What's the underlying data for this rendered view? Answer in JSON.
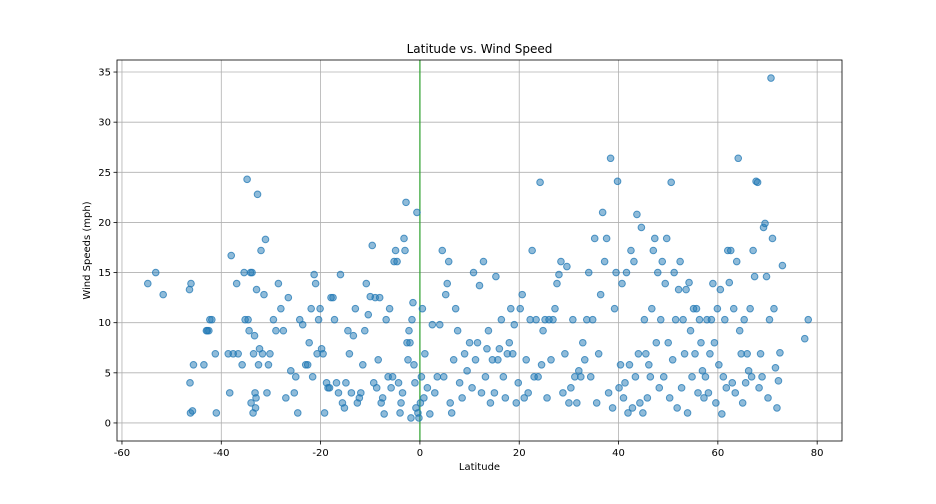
{
  "chart_data": {
    "type": "scatter",
    "title": "Latitude vs. Wind Speed",
    "xlabel": "Latitude",
    "ylabel": "Wind Speeds (mph)",
    "xlim": [
      -61,
      85
    ],
    "ylim": [
      -1.8,
      36.2
    ],
    "xticks": [
      -60,
      -40,
      -20,
      0,
      20,
      40,
      60,
      80
    ],
    "yticks": [
      0,
      5,
      10,
      15,
      20,
      25,
      30,
      35
    ],
    "grid": true,
    "reference_line": {
      "x": 0,
      "color": "#2ca02c"
    },
    "point_color": "#1f77b4",
    "points": [
      [
        -54.8,
        13.9
      ],
      [
        -53.2,
        15.0
      ],
      [
        -51.7,
        12.8
      ],
      [
        -46.4,
        13.3
      ],
      [
        -46.1,
        13.9
      ],
      [
        -46.3,
        4.0
      ],
      [
        -46.2,
        1.0
      ],
      [
        -45.8,
        1.2
      ],
      [
        -45.6,
        5.8
      ],
      [
        -43.5,
        5.8
      ],
      [
        -43.0,
        9.2
      ],
      [
        -42.8,
        9.2
      ],
      [
        -42.5,
        9.2
      ],
      [
        -42.3,
        10.3
      ],
      [
        -41.9,
        10.3
      ],
      [
        -41.2,
        6.9
      ],
      [
        -41.0,
        1.0
      ],
      [
        -38.6,
        6.9
      ],
      [
        -38.3,
        3.0
      ],
      [
        -38.0,
        16.7
      ],
      [
        -37.6,
        6.9
      ],
      [
        -36.9,
        13.9
      ],
      [
        -36.6,
        6.9
      ],
      [
        -35.8,
        5.8
      ],
      [
        -35.4,
        15.0
      ],
      [
        -35.2,
        10.3
      ],
      [
        -34.8,
        24.3
      ],
      [
        -34.6,
        10.3
      ],
      [
        -34.4,
        9.2
      ],
      [
        -34.1,
        15.0
      ],
      [
        -34.0,
        2.0
      ],
      [
        -33.8,
        15.0
      ],
      [
        -33.6,
        1.0
      ],
      [
        -33.5,
        6.9
      ],
      [
        -33.3,
        8.7
      ],
      [
        -33.2,
        3.0
      ],
      [
        -33.1,
        1.5
      ],
      [
        -33.0,
        2.5
      ],
      [
        -32.9,
        13.3
      ],
      [
        -32.7,
        22.8
      ],
      [
        -32.5,
        5.8
      ],
      [
        -32.3,
        7.4
      ],
      [
        -32.0,
        17.2
      ],
      [
        -31.7,
        6.9
      ],
      [
        -31.4,
        12.8
      ],
      [
        -31.1,
        18.3
      ],
      [
        -30.8,
        3.0
      ],
      [
        -30.5,
        5.8
      ],
      [
        -30.2,
        6.9
      ],
      [
        -29.5,
        10.3
      ],
      [
        -29.0,
        9.2
      ],
      [
        -28.5,
        13.9
      ],
      [
        -28.0,
        11.4
      ],
      [
        -27.5,
        9.2
      ],
      [
        -27.0,
        2.5
      ],
      [
        -26.5,
        12.5
      ],
      [
        -26.0,
        5.2
      ],
      [
        -25.3,
        3.0
      ],
      [
        -25.0,
        4.6
      ],
      [
        -24.6,
        1.0
      ],
      [
        -24.2,
        10.3
      ],
      [
        -23.6,
        9.8
      ],
      [
        -23.0,
        5.8
      ],
      [
        -22.6,
        5.8
      ],
      [
        -22.3,
        8.0
      ],
      [
        -21.9,
        11.4
      ],
      [
        -21.6,
        4.6
      ],
      [
        -21.3,
        14.8
      ],
      [
        -21.0,
        13.9
      ],
      [
        -20.7,
        6.9
      ],
      [
        -20.4,
        10.3
      ],
      [
        -20.1,
        11.4
      ],
      [
        -19.8,
        7.4
      ],
      [
        -19.5,
        6.9
      ],
      [
        -19.2,
        1.0
      ],
      [
        -18.8,
        4.0
      ],
      [
        -18.5,
        3.5
      ],
      [
        -18.2,
        3.5
      ],
      [
        -17.9,
        12.5
      ],
      [
        -17.5,
        12.5
      ],
      [
        -17.2,
        10.3
      ],
      [
        -16.8,
        4.0
      ],
      [
        -16.4,
        3.0
      ],
      [
        -16.0,
        14.8
      ],
      [
        -15.6,
        2.0
      ],
      [
        -15.2,
        1.5
      ],
      [
        -14.9,
        4.0
      ],
      [
        -14.5,
        9.2
      ],
      [
        -14.2,
        6.9
      ],
      [
        -13.8,
        3.0
      ],
      [
        -13.4,
        8.7
      ],
      [
        -13.0,
        11.4
      ],
      [
        -12.6,
        2.0
      ],
      [
        -12.2,
        2.5
      ],
      [
        -11.9,
        3.0
      ],
      [
        -11.5,
        5.8
      ],
      [
        -11.1,
        9.2
      ],
      [
        -10.8,
        13.9
      ],
      [
        -10.4,
        10.8
      ],
      [
        -10.0,
        12.6
      ],
      [
        -9.6,
        17.7
      ],
      [
        -9.3,
        4.0
      ],
      [
        -9.0,
        12.5
      ],
      [
        -8.7,
        3.5
      ],
      [
        -8.4,
        6.3
      ],
      [
        -8.1,
        12.5
      ],
      [
        -7.8,
        2.0
      ],
      [
        -7.5,
        2.5
      ],
      [
        -7.2,
        0.9
      ],
      [
        -6.8,
        10.3
      ],
      [
        -6.4,
        4.6
      ],
      [
        -6.1,
        11.4
      ],
      [
        -5.8,
        3.5
      ],
      [
        -5.5,
        4.6
      ],
      [
        -5.2,
        16.1
      ],
      [
        -4.9,
        17.2
      ],
      [
        -4.6,
        16.1
      ],
      [
        -4.3,
        4.0
      ],
      [
        -4.0,
        1.0
      ],
      [
        -3.8,
        2.0
      ],
      [
        -3.5,
        3.0
      ],
      [
        -3.2,
        18.4
      ],
      [
        -3.0,
        17.2
      ],
      [
        -2.8,
        22.0
      ],
      [
        -2.6,
        8.0
      ],
      [
        -2.4,
        6.3
      ],
      [
        -2.2,
        9.2
      ],
      [
        -2.0,
        8.0
      ],
      [
        -1.8,
        0.5
      ],
      [
        -1.6,
        10.3
      ],
      [
        -1.4,
        12.0
      ],
      [
        -1.2,
        5.8
      ],
      [
        -1.0,
        4.0
      ],
      [
        -0.8,
        1.5
      ],
      [
        -0.6,
        21.0
      ],
      [
        -0.4,
        1.0
      ],
      [
        -0.2,
        0.5
      ],
      [
        0.1,
        2.0
      ],
      [
        0.3,
        4.6
      ],
      [
        0.5,
        11.4
      ],
      [
        0.8,
        2.5
      ],
      [
        1.0,
        6.9
      ],
      [
        1.5,
        3.5
      ],
      [
        2.0,
        0.9
      ],
      [
        2.5,
        9.8
      ],
      [
        3.0,
        3.0
      ],
      [
        3.5,
        4.6
      ],
      [
        4.0,
        9.8
      ],
      [
        4.5,
        17.2
      ],
      [
        4.8,
        4.6
      ],
      [
        5.2,
        12.8
      ],
      [
        5.5,
        13.9
      ],
      [
        5.8,
        16.1
      ],
      [
        6.1,
        2.0
      ],
      [
        6.4,
        1.0
      ],
      [
        6.8,
        6.3
      ],
      [
        7.2,
        11.4
      ],
      [
        7.6,
        9.2
      ],
      [
        8.0,
        4.0
      ],
      [
        8.5,
        2.5
      ],
      [
        9.0,
        6.9
      ],
      [
        9.5,
        5.2
      ],
      [
        10.0,
        8.0
      ],
      [
        10.5,
        3.5
      ],
      [
        10.8,
        15.0
      ],
      [
        11.2,
        6.3
      ],
      [
        11.6,
        8.0
      ],
      [
        12.0,
        13.7
      ],
      [
        12.4,
        3.0
      ],
      [
        12.8,
        16.1
      ],
      [
        13.2,
        4.6
      ],
      [
        13.5,
        7.4
      ],
      [
        13.8,
        9.2
      ],
      [
        14.2,
        2.0
      ],
      [
        14.6,
        6.3
      ],
      [
        15.0,
        3.0
      ],
      [
        15.3,
        14.6
      ],
      [
        15.7,
        6.3
      ],
      [
        16.0,
        7.4
      ],
      [
        16.4,
        10.3
      ],
      [
        16.8,
        4.6
      ],
      [
        17.2,
        2.5
      ],
      [
        17.6,
        6.9
      ],
      [
        18.0,
        8.0
      ],
      [
        18.3,
        11.4
      ],
      [
        18.7,
        6.9
      ],
      [
        19.0,
        9.8
      ],
      [
        19.4,
        2.0
      ],
      [
        19.8,
        4.0
      ],
      [
        20.2,
        11.4
      ],
      [
        20.6,
        12.8
      ],
      [
        21.0,
        2.5
      ],
      [
        21.4,
        6.3
      ],
      [
        21.8,
        3.0
      ],
      [
        22.2,
        10.3
      ],
      [
        22.6,
        17.2
      ],
      [
        23.0,
        4.6
      ],
      [
        23.4,
        10.3
      ],
      [
        23.8,
        4.6
      ],
      [
        24.2,
        24.0
      ],
      [
        24.5,
        5.8
      ],
      [
        24.8,
        9.2
      ],
      [
        25.2,
        10.3
      ],
      [
        25.6,
        2.5
      ],
      [
        26.0,
        10.3
      ],
      [
        26.4,
        6.3
      ],
      [
        26.8,
        10.3
      ],
      [
        27.2,
        11.4
      ],
      [
        27.6,
        13.9
      ],
      [
        28.0,
        14.8
      ],
      [
        28.4,
        16.1
      ],
      [
        28.8,
        3.0
      ],
      [
        29.2,
        6.9
      ],
      [
        29.6,
        15.6
      ],
      [
        30.0,
        2.0
      ],
      [
        30.4,
        3.5
      ],
      [
        30.8,
        10.3
      ],
      [
        31.2,
        4.6
      ],
      [
        31.6,
        2.0
      ],
      [
        32.0,
        5.2
      ],
      [
        32.4,
        4.6
      ],
      [
        32.8,
        8.0
      ],
      [
        33.2,
        6.3
      ],
      [
        33.6,
        10.3
      ],
      [
        34.0,
        15.0
      ],
      [
        34.4,
        4.6
      ],
      [
        34.8,
        10.3
      ],
      [
        35.2,
        18.4
      ],
      [
        35.6,
        2.0
      ],
      [
        36.0,
        6.9
      ],
      [
        36.4,
        12.8
      ],
      [
        36.8,
        21.0
      ],
      [
        37.2,
        16.1
      ],
      [
        37.6,
        18.4
      ],
      [
        38.0,
        3.0
      ],
      [
        38.4,
        26.4
      ],
      [
        38.8,
        1.5
      ],
      [
        39.2,
        11.4
      ],
      [
        39.5,
        15.0
      ],
      [
        39.8,
        24.1
      ],
      [
        40.1,
        3.5
      ],
      [
        40.4,
        5.8
      ],
      [
        40.7,
        13.9
      ],
      [
        41.0,
        2.5
      ],
      [
        41.3,
        4.0
      ],
      [
        41.6,
        15.0
      ],
      [
        41.9,
        1.0
      ],
      [
        42.2,
        5.8
      ],
      [
        42.5,
        17.2
      ],
      [
        42.8,
        1.5
      ],
      [
        43.1,
        16.1
      ],
      [
        43.4,
        4.6
      ],
      [
        43.7,
        20.8
      ],
      [
        44.0,
        6.9
      ],
      [
        44.3,
        2.0
      ],
      [
        44.6,
        19.5
      ],
      [
        44.9,
        1.0
      ],
      [
        45.2,
        10.3
      ],
      [
        45.5,
        6.9
      ],
      [
        45.8,
        2.5
      ],
      [
        46.1,
        5.8
      ],
      [
        46.4,
        4.6
      ],
      [
        46.7,
        11.4
      ],
      [
        47.0,
        17.2
      ],
      [
        47.3,
        18.4
      ],
      [
        47.6,
        8.0
      ],
      [
        47.9,
        15.0
      ],
      [
        48.2,
        3.5
      ],
      [
        48.5,
        10.3
      ],
      [
        48.8,
        16.1
      ],
      [
        49.1,
        4.6
      ],
      [
        49.4,
        13.9
      ],
      [
        49.7,
        18.4
      ],
      [
        50.0,
        8.0
      ],
      [
        50.3,
        2.5
      ],
      [
        50.6,
        24.0
      ],
      [
        50.9,
        6.3
      ],
      [
        51.2,
        15.0
      ],
      [
        51.5,
        10.3
      ],
      [
        51.8,
        1.5
      ],
      [
        52.1,
        13.3
      ],
      [
        52.4,
        16.1
      ],
      [
        52.7,
        3.5
      ],
      [
        53.0,
        10.3
      ],
      [
        53.3,
        6.9
      ],
      [
        53.6,
        13.3
      ],
      [
        53.9,
        1.0
      ],
      [
        54.2,
        14.0
      ],
      [
        54.5,
        9.2
      ],
      [
        54.8,
        4.6
      ],
      [
        55.1,
        11.4
      ],
      [
        55.4,
        6.9
      ],
      [
        55.7,
        11.4
      ],
      [
        56.0,
        3.0
      ],
      [
        56.3,
        10.3
      ],
      [
        56.6,
        8.0
      ],
      [
        56.9,
        5.2
      ],
      [
        57.2,
        2.5
      ],
      [
        57.5,
        4.6
      ],
      [
        57.8,
        10.3
      ],
      [
        58.1,
        3.0
      ],
      [
        58.4,
        6.9
      ],
      [
        58.7,
        10.3
      ],
      [
        59.0,
        13.9
      ],
      [
        59.3,
        8.0
      ],
      [
        59.6,
        2.0
      ],
      [
        59.9,
        11.4
      ],
      [
        60.2,
        5.8
      ],
      [
        60.5,
        13.3
      ],
      [
        60.8,
        0.9
      ],
      [
        61.1,
        4.6
      ],
      [
        61.4,
        10.3
      ],
      [
        61.7,
        3.5
      ],
      [
        62.0,
        17.2
      ],
      [
        62.3,
        14.0
      ],
      [
        62.6,
        17.2
      ],
      [
        62.9,
        4.0
      ],
      [
        63.2,
        11.4
      ],
      [
        63.5,
        3.0
      ],
      [
        63.8,
        16.1
      ],
      [
        64.1,
        26.4
      ],
      [
        64.4,
        9.2
      ],
      [
        64.7,
        6.9
      ],
      [
        65.0,
        2.0
      ],
      [
        65.3,
        10.3
      ],
      [
        65.6,
        4.0
      ],
      [
        65.9,
        6.9
      ],
      [
        66.2,
        5.2
      ],
      [
        66.5,
        11.4
      ],
      [
        66.8,
        4.6
      ],
      [
        67.1,
        17.2
      ],
      [
        67.4,
        14.6
      ],
      [
        67.7,
        24.1
      ],
      [
        68.0,
        24.0
      ],
      [
        68.3,
        3.5
      ],
      [
        68.6,
        6.9
      ],
      [
        68.9,
        4.6
      ],
      [
        69.2,
        19.5
      ],
      [
        69.5,
        19.9
      ],
      [
        69.8,
        14.6
      ],
      [
        70.1,
        2.5
      ],
      [
        70.4,
        10.3
      ],
      [
        70.7,
        34.4
      ],
      [
        71.0,
        18.4
      ],
      [
        71.3,
        11.4
      ],
      [
        71.6,
        5.5
      ],
      [
        71.9,
        1.5
      ],
      [
        72.2,
        4.2
      ],
      [
        72.5,
        7.0
      ],
      [
        73.0,
        15.7
      ],
      [
        77.5,
        8.4
      ],
      [
        78.2,
        10.3
      ]
    ]
  }
}
